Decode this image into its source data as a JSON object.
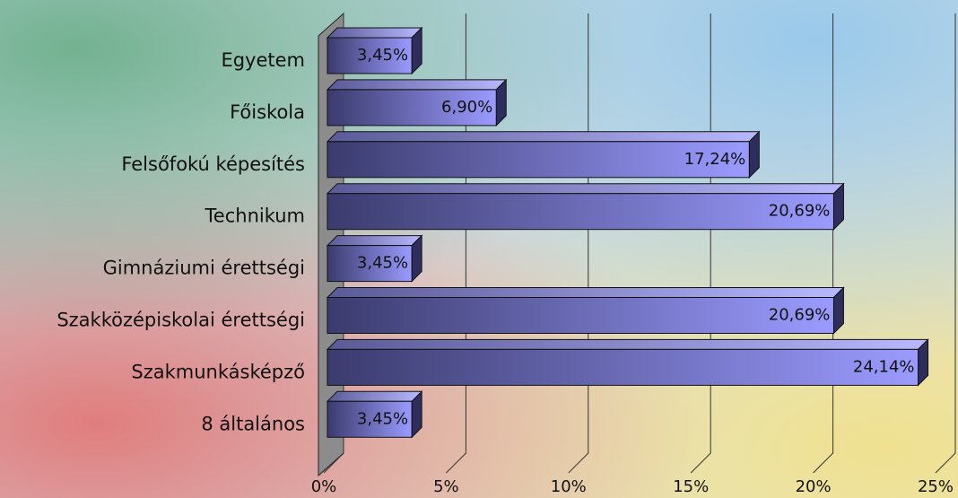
{
  "chart_data": {
    "type": "bar",
    "orientation": "horizontal",
    "categories": [
      "Egyetem",
      "Főiskola",
      "Felsőfokú képesítés",
      "Technikum",
      "Gimnáziumi érettségi",
      "Szakközépiskolai érettségi",
      "Szakmunkásképző",
      "8 általános"
    ],
    "values": [
      3.45,
      6.9,
      17.24,
      20.69,
      3.45,
      20.69,
      24.14,
      3.45
    ],
    "value_labels": [
      "3,45%",
      "6,90%",
      "17,24%",
      "20,69%",
      "3,45%",
      "20,69%",
      "24,14%",
      "3,45%"
    ],
    "color": "#9b9bff",
    "xlim": [
      0,
      25
    ],
    "xticks": [
      {
        "value": 0,
        "label": "0%"
      },
      {
        "value": 5,
        "label": "5%"
      },
      {
        "value": 10,
        "label": "10%"
      },
      {
        "value": 15,
        "label": "15%"
      },
      {
        "value": 20,
        "label": "20%"
      },
      {
        "value": 25,
        "label": "25%"
      }
    ],
    "grid": true
  }
}
